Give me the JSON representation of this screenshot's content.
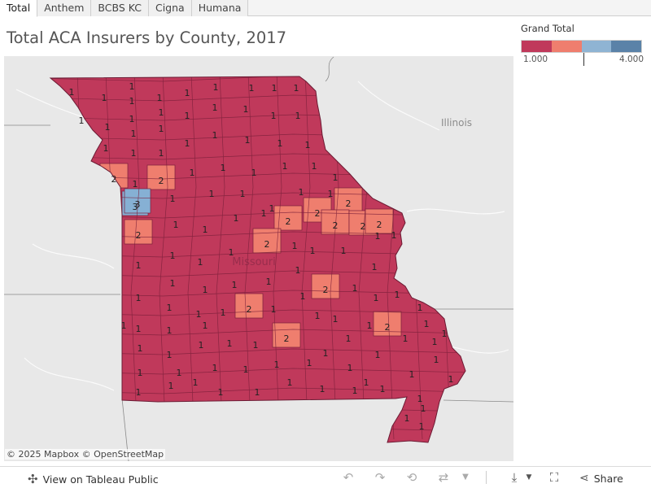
{
  "tabs": [
    {
      "label": "Total",
      "active": true
    },
    {
      "label": "Anthem",
      "active": false
    },
    {
      "label": "BCBS KC",
      "active": false
    },
    {
      "label": "Cigna",
      "active": false
    },
    {
      "label": "Humana",
      "active": false
    }
  ],
  "title": "Total ACA Insurers by County, 2017",
  "legend": {
    "title": "Grand Total",
    "min_label": "1.000",
    "max_label": "4.000",
    "colors": [
      "#c0395b",
      "#ef7e6e",
      "#8fb4d3",
      "#5a82a8"
    ]
  },
  "map": {
    "neighbor_label": "Illinois",
    "state_label": "Missouri",
    "attribution": "© 2025 Mapbox © OpenStreetMap",
    "fill_colors": {
      "1": "#c0395b",
      "2": "#ef7e6e",
      "3": "#86b0d4"
    },
    "county_values": [
      1,
      1,
      1,
      1,
      1,
      1,
      1,
      1,
      1,
      1,
      1,
      1,
      1,
      1,
      1,
      1,
      1,
      1,
      1,
      1,
      1,
      1,
      1,
      1,
      1,
      1,
      1,
      1,
      1,
      1,
      1,
      1,
      1,
      1,
      1,
      2,
      1,
      2,
      1,
      1,
      1,
      1,
      1,
      1,
      3,
      3,
      1,
      1,
      1,
      1,
      2,
      2,
      2,
      2,
      2,
      2,
      2,
      1,
      1,
      1,
      1,
      1,
      2,
      1,
      1,
      1,
      1,
      1,
      1,
      1,
      1,
      1,
      1,
      2,
      1,
      1,
      1,
      1,
      1,
      1,
      1,
      2,
      1,
      1,
      1,
      1,
      1,
      2,
      1,
      1,
      1,
      1,
      1,
      2,
      1,
      1,
      1,
      1,
      1,
      1,
      1,
      1,
      1,
      1,
      1,
      1,
      1,
      1,
      1,
      1,
      1,
      1,
      1,
      1,
      1,
      1,
      1,
      1,
      1,
      1,
      1,
      1,
      1,
      1,
      1,
      1,
      1,
      1,
      1,
      1,
      1
    ]
  },
  "footer": {
    "view_label": "View on Tableau Public",
    "share_label": "Share"
  }
}
